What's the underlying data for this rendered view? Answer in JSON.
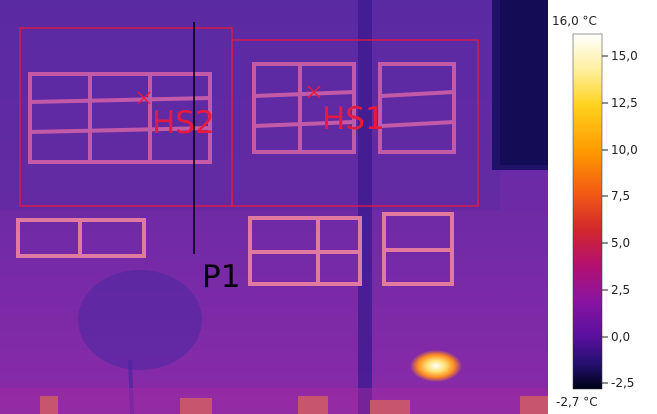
{
  "thermal_image": {
    "hotspots": [
      {
        "label": "HS2",
        "color": "#e8193c"
      },
      {
        "label": "HS1",
        "color": "#e8193c"
      }
    ],
    "profile_line": {
      "label": "P1",
      "color": "#000000"
    }
  },
  "scale": {
    "max_label": "16,0 °C",
    "min_label": "-2,7 °C",
    "ticks": [
      "15,0",
      "12,5",
      "10,0",
      "7,5",
      "5,0",
      "2,5",
      "0,0",
      "-2,5"
    ],
    "palette": [
      "#ffffff",
      "#fff0a0",
      "#ffd21e",
      "#ff9a00",
      "#f25a14",
      "#d2282c",
      "#b4106e",
      "#8a14a0",
      "#5a10a0",
      "#24106e",
      "#000018"
    ]
  }
}
